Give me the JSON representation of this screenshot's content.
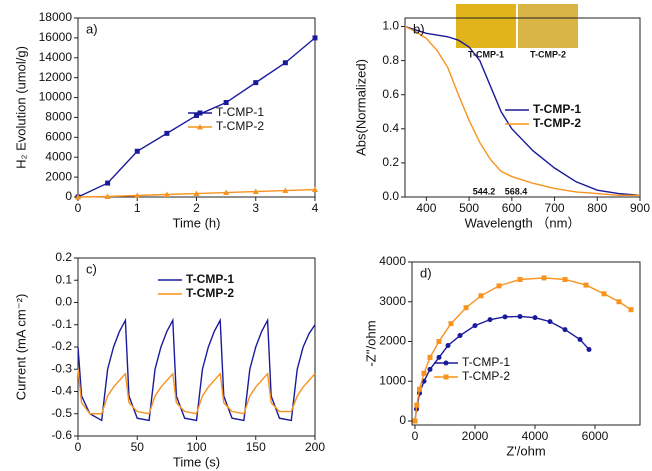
{
  "chart_data": [
    {
      "type": "line",
      "panel_label": "a)",
      "xlabel": "Time (h)",
      "ylabel": "H₂ Evolution (umol/g)",
      "x": [
        0,
        0.5,
        1,
        1.5,
        2,
        2.5,
        3,
        3.5,
        4
      ],
      "series": [
        {
          "name": "T-CMP-1",
          "color": "#1a1a9c",
          "marker": "square",
          "values": [
            0,
            1400,
            4600,
            6400,
            8200,
            9500,
            11500,
            13500,
            16000
          ]
        },
        {
          "name": "T-CMP-2",
          "color": "#f7931e",
          "marker": "triangle",
          "values": [
            0,
            50,
            150,
            250,
            350,
            450,
            550,
            650,
            750
          ]
        }
      ],
      "xlim": [
        0,
        4
      ],
      "xticks": [
        0,
        1,
        2,
        3,
        4
      ],
      "ylim": [
        0,
        18000
      ],
      "yticks": [
        0,
        2000,
        4000,
        6000,
        8000,
        10000,
        12000,
        14000,
        16000,
        18000
      ],
      "legend": "right"
    },
    {
      "type": "line",
      "panel_label": "b)",
      "xlabel": "Wavelength （nm）",
      "ylabel": "Abs(Normalized)",
      "x": [
        350,
        375,
        400,
        425,
        450,
        475,
        500,
        525,
        550,
        575,
        600,
        650,
        700,
        750,
        800,
        850,
        900
      ],
      "series": [
        {
          "name": "T-CMP-1",
          "color": "#1a1a9c",
          "marker": "none",
          "values": [
            1.0,
            0.98,
            0.96,
            0.95,
            0.94,
            0.92,
            0.88,
            0.8,
            0.65,
            0.5,
            0.4,
            0.27,
            0.17,
            0.09,
            0.04,
            0.02,
            0.01
          ]
        },
        {
          "name": "T-CMP-2",
          "color": "#f7931e",
          "marker": "none",
          "values": [
            1.0,
            0.97,
            0.93,
            0.86,
            0.76,
            0.6,
            0.45,
            0.32,
            0.22,
            0.15,
            0.12,
            0.08,
            0.05,
            0.03,
            0.02,
            0.01,
            0.01
          ]
        }
      ],
      "xlim": [
        350,
        900
      ],
      "xticks": [
        400,
        500,
        600,
        700,
        800,
        900
      ],
      "ylim": [
        0,
        1.05
      ],
      "yticks": [
        {
          "value": 0,
          "label": "0.0"
        },
        0.2,
        0.4,
        0.6,
        0.8,
        {
          "value": 1,
          "label": "1.0"
        }
      ],
      "legend": "center-right",
      "annotations": [
        "544.2",
        "568.4",
        "T-CMP-1",
        "T-CMP-2"
      ]
    },
    {
      "type": "line",
      "panel_label": "c)",
      "xlabel": "Time (s)",
      "ylabel": "Current (mA cm⁻²)",
      "x": [
        0,
        3,
        10,
        20,
        25,
        30,
        35,
        40,
        43,
        50,
        60,
        65,
        70,
        75,
        80,
        83,
        90,
        100,
        105,
        110,
        115,
        120,
        123,
        130,
        140,
        145,
        150,
        155,
        160,
        163,
        170,
        180,
        185,
        190,
        195,
        200
      ],
      "series": [
        {
          "name": "T-CMP-1",
          "color": "#1a1a9c",
          "marker": "none",
          "values": [
            -0.2,
            -0.42,
            -0.5,
            -0.53,
            -0.3,
            -0.2,
            -0.13,
            -0.08,
            -0.42,
            -0.52,
            -0.53,
            -0.3,
            -0.2,
            -0.13,
            -0.08,
            -0.42,
            -0.52,
            -0.53,
            -0.3,
            -0.2,
            -0.13,
            -0.08,
            -0.42,
            -0.52,
            -0.53,
            -0.3,
            -0.2,
            -0.13,
            -0.08,
            -0.42,
            -0.52,
            -0.53,
            -0.3,
            -0.2,
            -0.14,
            -0.1
          ]
        },
        {
          "name": "T-CMP-2",
          "color": "#f7931e",
          "marker": "none",
          "values": [
            -0.3,
            -0.45,
            -0.5,
            -0.5,
            -0.42,
            -0.38,
            -0.35,
            -0.32,
            -0.45,
            -0.49,
            -0.5,
            -0.42,
            -0.38,
            -0.35,
            -0.32,
            -0.45,
            -0.49,
            -0.5,
            -0.42,
            -0.38,
            -0.35,
            -0.32,
            -0.45,
            -0.49,
            -0.5,
            -0.42,
            -0.38,
            -0.35,
            -0.32,
            -0.45,
            -0.49,
            -0.49,
            -0.42,
            -0.38,
            -0.35,
            -0.32
          ]
        }
      ],
      "xlim": [
        0,
        200
      ],
      "xticks": [
        0,
        50,
        100,
        150,
        200
      ],
      "ylim": [
        -0.6,
        0.2
      ],
      "yticks": [
        -0.6,
        -0.5,
        -0.4,
        -0.3,
        -0.2,
        -0.1,
        {
          "value": 0,
          "label": "0.0"
        },
        0.1,
        0.2
      ],
      "legend": "upper-left"
    },
    {
      "type": "line",
      "panel_label": "d)",
      "xlabel": "Z'/ohm",
      "ylabel": "-Z''/ohm",
      "series": [
        {
          "name": "T-CMP-1",
          "color": "#1a1a9c",
          "marker": "circle",
          "x": [
            0,
            50,
            150,
            300,
            500,
            800,
            1100,
            1500,
            2000,
            2500,
            3000,
            3500,
            4000,
            4500,
            5000,
            5500,
            5800
          ],
          "values": [
            0,
            300,
            700,
            1000,
            1300,
            1600,
            1900,
            2150,
            2400,
            2550,
            2620,
            2630,
            2600,
            2500,
            2300,
            2050,
            1800
          ]
        },
        {
          "name": "T-CMP-2",
          "color": "#f7931e",
          "marker": "square",
          "x": [
            0,
            60,
            150,
            300,
            500,
            800,
            1200,
            1700,
            2200,
            2800,
            3500,
            4300,
            5000,
            5700,
            6300,
            6800,
            7200
          ],
          "values": [
            0,
            400,
            800,
            1200,
            1600,
            2000,
            2450,
            2850,
            3150,
            3400,
            3560,
            3600,
            3560,
            3420,
            3200,
            3000,
            2800
          ]
        }
      ],
      "xlim": [
        -100,
        7500
      ],
      "xticks": [
        0,
        2000,
        4000,
        6000
      ],
      "ylim": [
        -100,
        4000
      ],
      "yticks": [
        0,
        1000,
        2000,
        3000,
        4000
      ],
      "legend": "lower-left"
    }
  ]
}
